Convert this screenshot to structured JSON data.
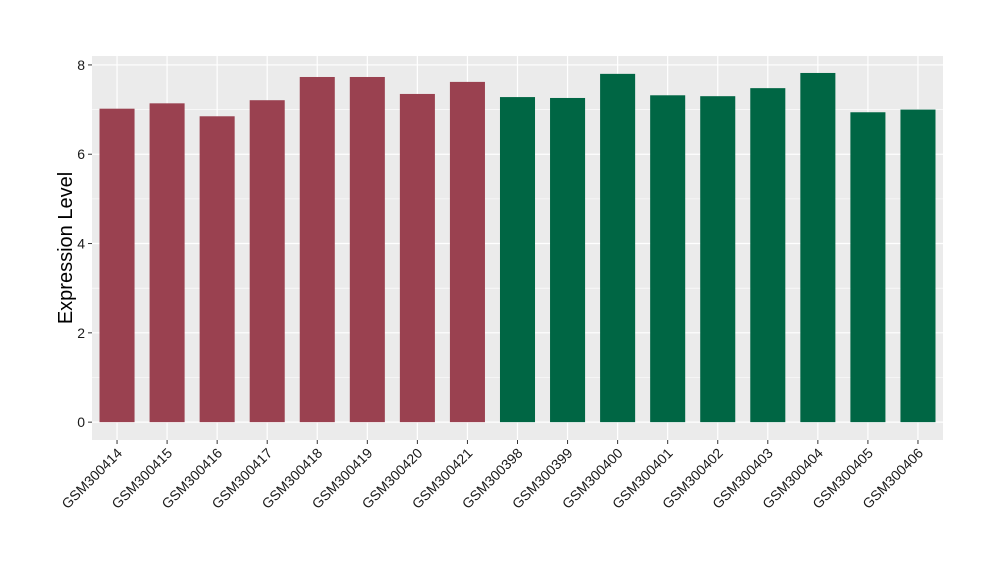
{
  "chart_data": {
    "type": "bar",
    "title": "",
    "xlabel": "",
    "ylabel": "Expression Level",
    "ylim": [
      -0.4,
      8.2
    ],
    "yticks": [
      0,
      2,
      4,
      6,
      8
    ],
    "grid": true,
    "legend": "none",
    "categories": [
      "GSM300414",
      "GSM300415",
      "GSM300416",
      "GSM300417",
      "GSM300418",
      "GSM300419",
      "GSM300420",
      "GSM300421",
      "GSM300398",
      "GSM300399",
      "GSM300400",
      "GSM300401",
      "GSM300402",
      "GSM300403",
      "GSM300404",
      "GSM300405",
      "GSM300406"
    ],
    "values": [
      7.02,
      7.14,
      6.85,
      7.21,
      7.73,
      7.73,
      7.35,
      7.62,
      7.28,
      7.26,
      7.8,
      7.32,
      7.3,
      7.48,
      7.82,
      6.94,
      7.0
    ],
    "group": [
      "a",
      "a",
      "a",
      "a",
      "a",
      "a",
      "a",
      "a",
      "b",
      "b",
      "b",
      "b",
      "b",
      "b",
      "b",
      "b",
      "b"
    ],
    "colors": {
      "a": "#9a4150",
      "b": "#006644",
      "panel": "#ebebeb",
      "grid": "#ffffff"
    }
  }
}
